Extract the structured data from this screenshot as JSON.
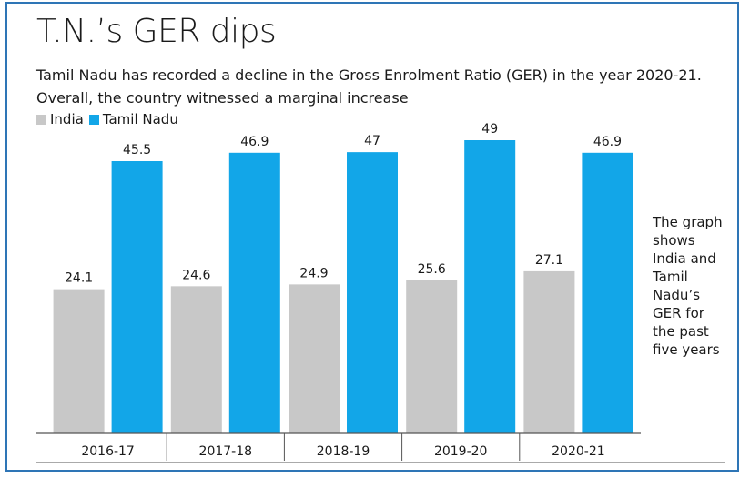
{
  "title": "T.N.’s GER dips",
  "subtitle": "Tamil Nadu has recorded a decline in the Gross Enrolment Ratio (GER) in the year 2020-21. Overall, the country witnessed a marginal increase",
  "note": "The graph shows India and Tamil Nadu’s GER for the past five years",
  "colors": {
    "india": "#c8c8c8",
    "tamil_nadu": "#12a6e8",
    "frame": "#2e75b6",
    "axis": "#555555"
  },
  "chart_data": {
    "type": "bar",
    "categories": [
      "2016-17",
      "2017-18",
      "2018-19",
      "2019-20",
      "2020-21"
    ],
    "series": [
      {
        "name": "India",
        "values": [
          24.1,
          24.6,
          24.9,
          25.6,
          27.1
        ]
      },
      {
        "name": "Tamil Nadu",
        "values": [
          45.5,
          46.9,
          47,
          49,
          46.9
        ]
      }
    ],
    "value_labels": [
      [
        "24.1",
        "24.6",
        "24.9",
        "25.6",
        "27.1"
      ],
      [
        "45.5",
        "46.9",
        "47",
        "49",
        "46.9"
      ]
    ],
    "ylim": [
      0,
      49
    ],
    "grid": false,
    "legend_position": "top-left"
  }
}
